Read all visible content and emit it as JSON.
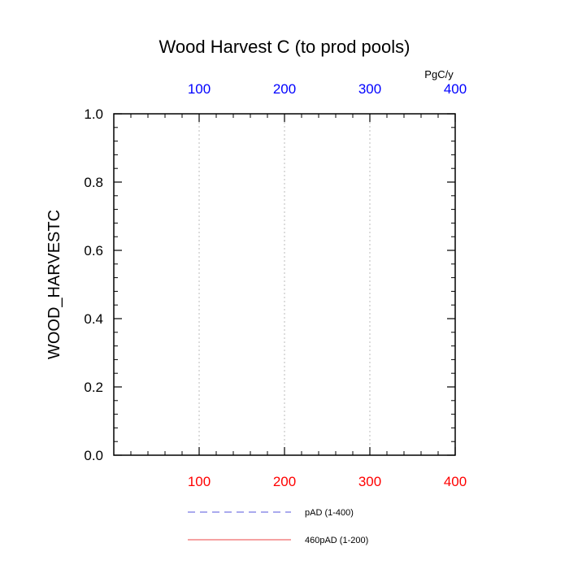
{
  "chart_data": {
    "type": "line",
    "title": "Wood Harvest C (to prod pools)",
    "xlabel": "",
    "ylabel": "WOOD_HARVESTC",
    "top_axis_unit": "PgC/y",
    "xlim": [
      0,
      400
    ],
    "ylim": [
      0.0,
      1.0
    ],
    "bottom_ticks": [
      "100",
      "200",
      "300",
      "400"
    ],
    "bottom_tick_values": [
      100,
      200,
      300,
      400
    ],
    "top_ticks": [
      "100",
      "200",
      "300",
      "400"
    ],
    "top_tick_values": [
      100,
      200,
      300,
      400
    ],
    "y_ticks": [
      "0.0",
      "0.2",
      "0.4",
      "0.6",
      "0.8",
      "1.0"
    ],
    "y_tick_values": [
      0.0,
      0.2,
      0.4,
      0.6,
      0.8,
      1.0
    ],
    "vertical_grid_at": [
      100,
      200,
      300
    ],
    "grid": true,
    "series": [
      {
        "name": "pAD (1-400)",
        "style": "dashed",
        "color": "#5555dd",
        "x": [
          0,
          400
        ],
        "y": [
          0.0,
          0.0
        ]
      },
      {
        "name": "460pAD (1-200)",
        "style": "solid",
        "color": "#ee4444",
        "x": [
          0,
          200
        ],
        "y": [
          0.0,
          0.0
        ]
      }
    ],
    "legend_position": "bottom"
  },
  "colors": {
    "bottom_tick_label": "#ff0000",
    "top_tick_label": "#0000ff",
    "axis": "#000000",
    "grid": "#bbbbbb"
  }
}
